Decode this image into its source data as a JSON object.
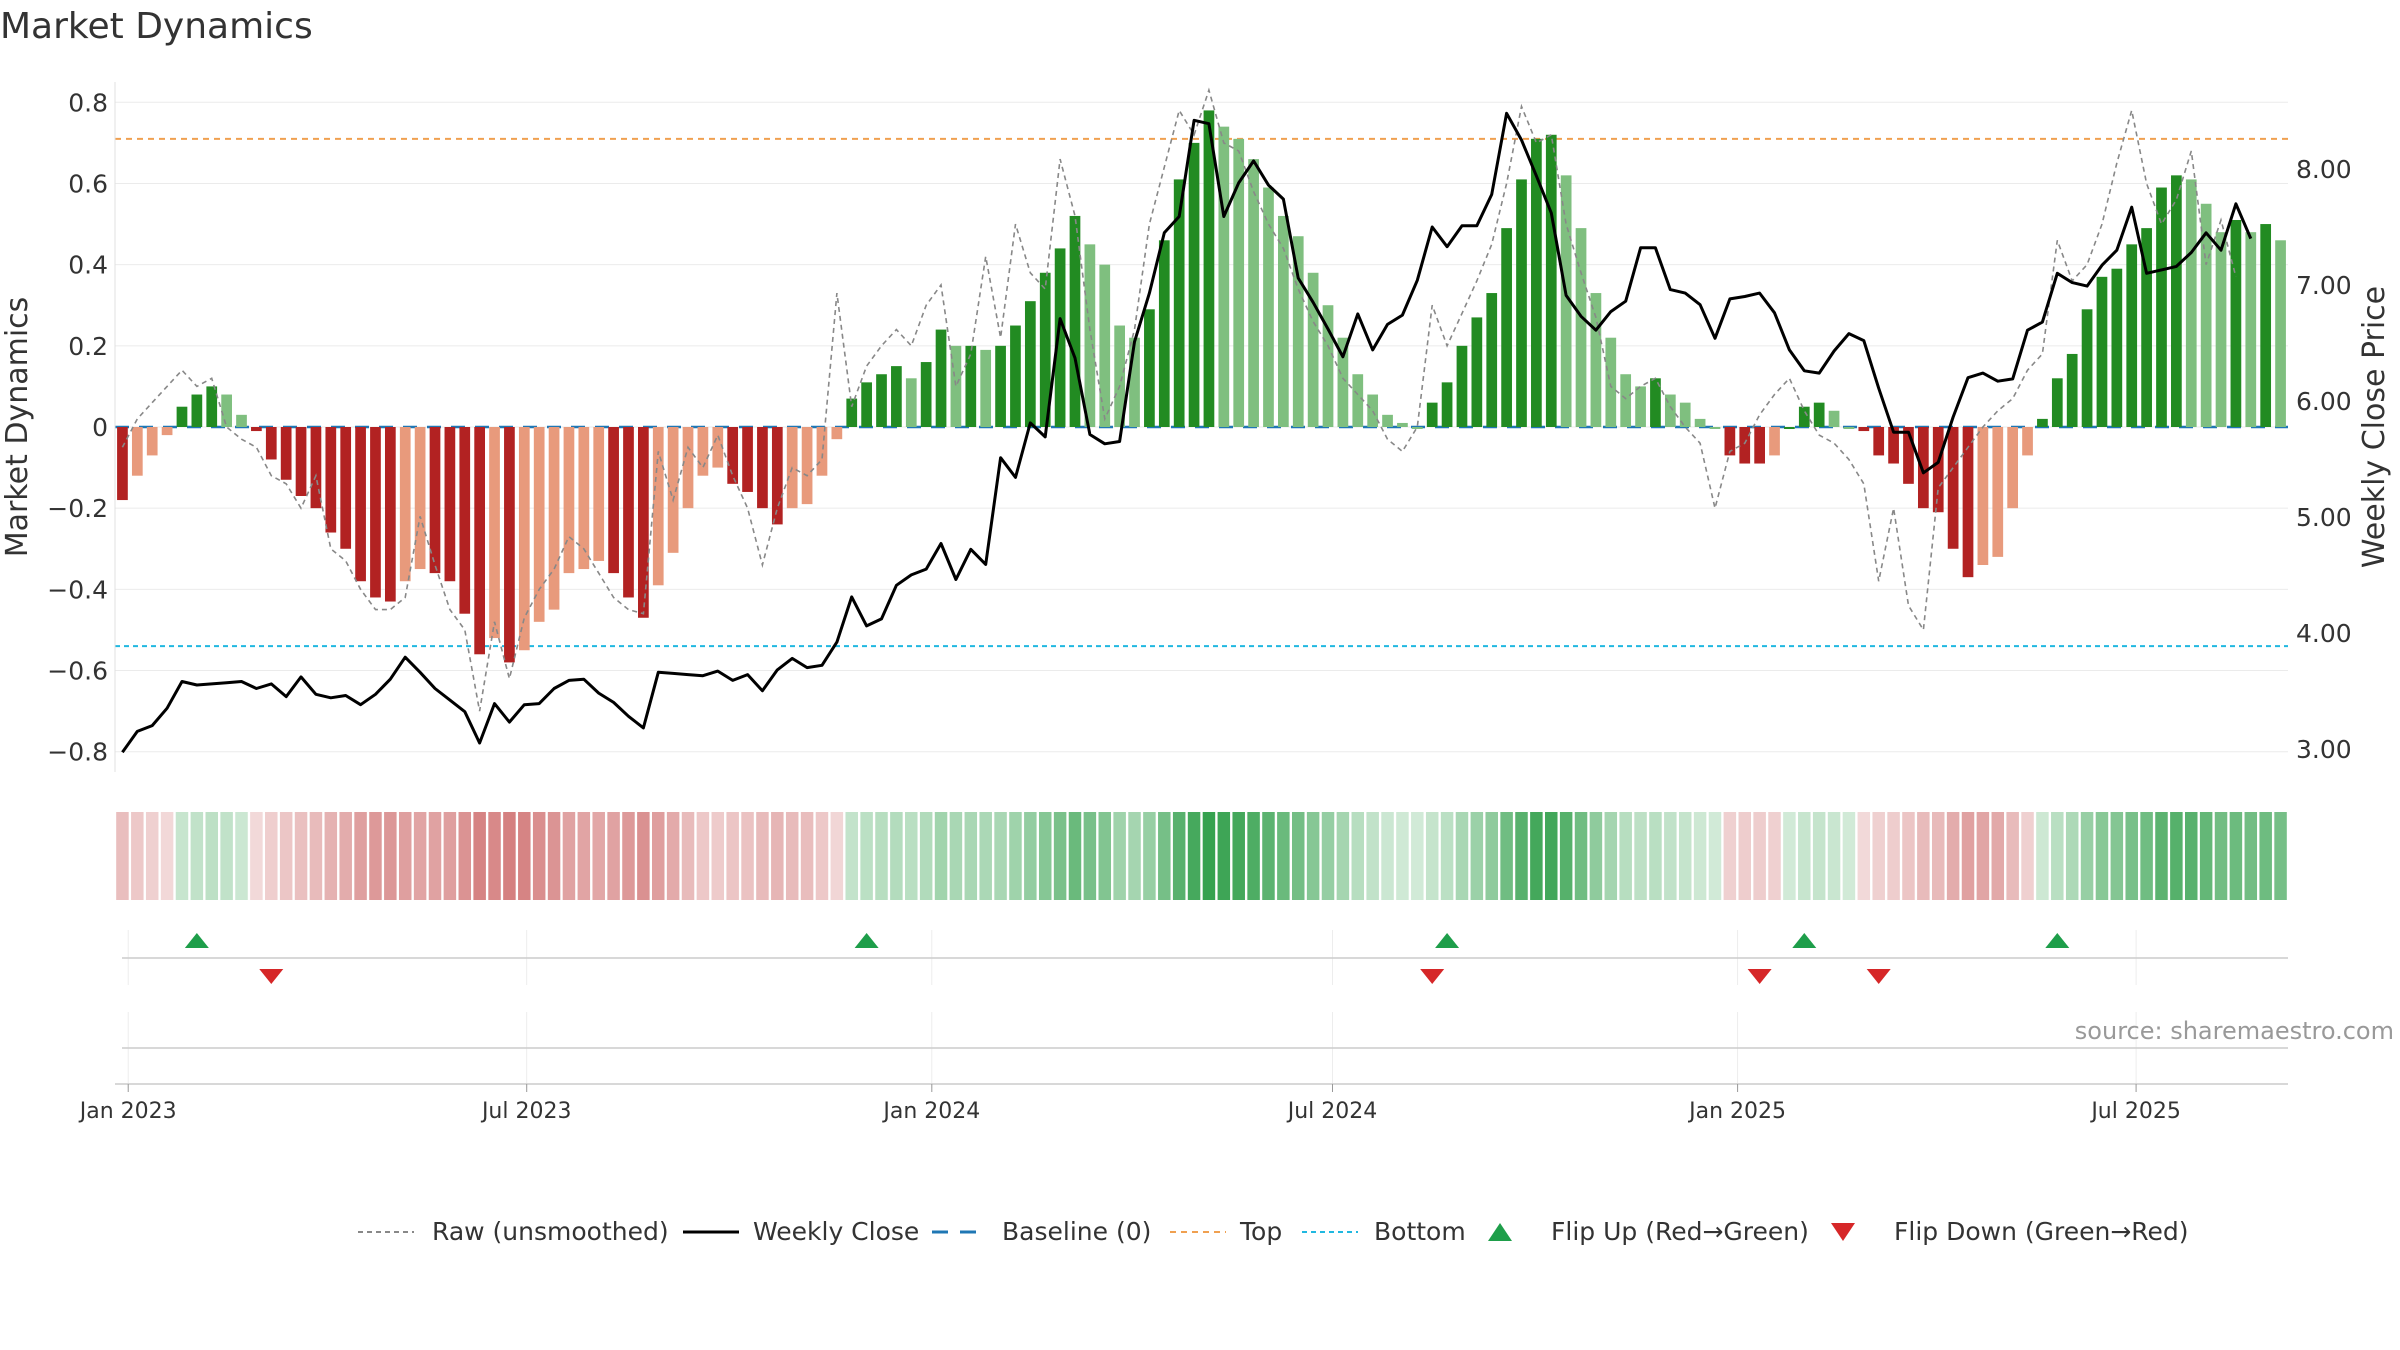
{
  "title": "Market Dynamics",
  "source": "source: sharemaestro.com",
  "colors": {
    "strong_green": "#228B22",
    "light_green": "#7fbf7f",
    "strong_red": "#b22222",
    "light_red": "#e89a7c",
    "close": "#000000",
    "raw": "#888888",
    "baseline": "#1f77b4",
    "top": "#f0a050",
    "bottom": "#20b8e0",
    "flip_up": "#1e9e4a",
    "flip_down": "#d62728"
  },
  "chart_data": {
    "type": "bar",
    "x_start": "2022-12-26",
    "x_end": "2025-09-08",
    "xticks": [
      {
        "date": "2023-01-01",
        "label": "Jan 2023"
      },
      {
        "date": "2023-07-01",
        "label": "Jul 2023"
      },
      {
        "date": "2024-01-01",
        "label": "Jan 2024"
      },
      {
        "date": "2024-07-01",
        "label": "Jul 2024"
      },
      {
        "date": "2025-01-01",
        "label": "Jan 2025"
      },
      {
        "date": "2025-07-01",
        "label": "Jul 2025"
      }
    ],
    "ylabel_left": "Market Dynamics",
    "ylabel_right": "Weekly Close Price",
    "ylim_left": [
      -0.85,
      0.85
    ],
    "ylim_right": [
      2.8,
      8.75
    ],
    "yticks_left": [
      0.8,
      0.6,
      0.4,
      0.2,
      0,
      -0.2,
      -0.4,
      -0.6,
      -0.8
    ],
    "ytick_labels_left": [
      "0.8",
      "0.6",
      "0.4",
      "0.2",
      "0",
      "−0.2",
      "−0.4",
      "−0.6",
      "−0.8"
    ],
    "yticks_right": [
      8,
      7,
      6,
      5,
      4,
      3
    ],
    "ytick_labels_right": [
      "8.00",
      "7.00",
      "6.00",
      "5.00",
      "4.00",
      "3.00"
    ],
    "top_level": 0.71,
    "bottom_level": -0.54,
    "baseline": 0,
    "grid": true,
    "momentum": [
      -0.18,
      -0.12,
      -0.07,
      -0.02,
      0.05,
      0.08,
      0.1,
      0.08,
      0.03,
      -0.01,
      -0.08,
      -0.13,
      -0.17,
      -0.2,
      -0.26,
      -0.3,
      -0.38,
      -0.42,
      -0.43,
      -0.38,
      -0.35,
      -0.36,
      -0.38,
      -0.46,
      -0.56,
      -0.52,
      -0.58,
      -0.55,
      -0.48,
      -0.45,
      -0.36,
      -0.35,
      -0.33,
      -0.36,
      -0.42,
      -0.47,
      -0.39,
      -0.31,
      -0.2,
      -0.12,
      -0.1,
      -0.14,
      -0.16,
      -0.2,
      -0.24,
      -0.2,
      -0.19,
      -0.12,
      -0.03,
      0.07,
      0.11,
      0.13,
      0.15,
      0.12,
      0.16,
      0.24,
      0.2,
      0.2,
      0.19,
      0.2,
      0.25,
      0.31,
      0.38,
      0.44,
      0.52,
      0.45,
      0.4,
      0.25,
      0.22,
      0.29,
      0.46,
      0.61,
      0.7,
      0.78,
      0.74,
      0.71,
      0.66,
      0.59,
      0.52,
      0.47,
      0.38,
      0.3,
      0.22,
      0.13,
      0.08,
      0.03,
      0.01,
      0.0,
      0.06,
      0.11,
      0.2,
      0.27,
      0.33,
      0.49,
      0.61,
      0.71,
      0.72,
      0.62,
      0.49,
      0.33,
      0.22,
      0.13,
      0.1,
      0.12,
      0.08,
      0.06,
      0.02,
      0.0,
      -0.07,
      -0.09,
      -0.09,
      -0.07,
      0.0,
      0.05,
      0.06,
      0.04,
      0.0,
      -0.01,
      -0.07,
      -0.09,
      -0.14,
      -0.2,
      -0.21,
      -0.3,
      -0.37,
      -0.34,
      -0.32,
      -0.2,
      -0.07,
      0.02,
      0.12,
      0.18,
      0.29,
      0.37,
      0.39,
      0.45,
      0.49,
      0.59,
      0.62,
      0.61,
      0.55,
      0.48,
      0.51,
      0.48,
      0.5,
      0.46
    ],
    "raw": [
      -0.05,
      0.02,
      0.06,
      0.1,
      0.14,
      0.1,
      0.12,
      0.0,
      -0.03,
      -0.05,
      -0.12,
      -0.14,
      -0.2,
      -0.12,
      -0.3,
      -0.33,
      -0.4,
      -0.45,
      -0.45,
      -0.42,
      -0.22,
      -0.34,
      -0.45,
      -0.5,
      -0.7,
      -0.48,
      -0.62,
      -0.47,
      -0.4,
      -0.35,
      -0.27,
      -0.3,
      -0.36,
      -0.42,
      -0.45,
      -0.46,
      -0.06,
      -0.18,
      -0.05,
      -0.1,
      -0.02,
      -0.12,
      -0.2,
      -0.34,
      -0.2,
      -0.1,
      -0.12,
      -0.08,
      0.33,
      0.05,
      0.15,
      0.2,
      0.24,
      0.2,
      0.3,
      0.35,
      0.1,
      0.18,
      0.42,
      0.22,
      0.5,
      0.38,
      0.34,
      0.66,
      0.52,
      0.24,
      0.02,
      0.1,
      0.24,
      0.5,
      0.64,
      0.78,
      0.72,
      0.83,
      0.7,
      0.68,
      0.58,
      0.5,
      0.44,
      0.34,
      0.26,
      0.2,
      0.12,
      0.08,
      0.04,
      -0.03,
      -0.06,
      0.0,
      0.3,
      0.2,
      0.28,
      0.36,
      0.45,
      0.6,
      0.79,
      0.7,
      0.72,
      0.5,
      0.38,
      0.27,
      0.1,
      0.07,
      0.1,
      0.12,
      0.05,
      0.0,
      -0.04,
      -0.2,
      -0.06,
      -0.04,
      0.03,
      0.08,
      0.12,
      0.04,
      -0.02,
      -0.04,
      -0.08,
      -0.14,
      -0.38,
      -0.2,
      -0.44,
      -0.5,
      -0.15,
      -0.1,
      -0.05,
      0.0,
      0.04,
      0.07,
      0.14,
      0.18,
      0.46,
      0.36,
      0.4,
      0.5,
      0.65,
      0.78,
      0.6,
      0.5,
      0.56,
      0.68,
      0.4,
      0.51,
      0.37
    ],
    "close": [
      2.97,
      3.15,
      3.2,
      3.35,
      3.58,
      3.55,
      3.56,
      3.57,
      3.58,
      3.52,
      3.56,
      3.45,
      3.62,
      3.47,
      3.44,
      3.46,
      3.38,
      3.47,
      3.6,
      3.79,
      3.66,
      3.52,
      3.42,
      3.32,
      3.05,
      3.39,
      3.23,
      3.38,
      3.39,
      3.52,
      3.59,
      3.6,
      3.48,
      3.4,
      3.28,
      3.18,
      3.66,
      3.65,
      3.64,
      3.63,
      3.67,
      3.59,
      3.64,
      3.5,
      3.68,
      3.78,
      3.7,
      3.72,
      3.92,
      4.31,
      4.06,
      4.12,
      4.41,
      4.5,
      4.55,
      4.77,
      4.46,
      4.72,
      4.59,
      5.51,
      5.34,
      5.81,
      5.69,
      6.71,
      6.37,
      5.71,
      5.63,
      5.65,
      6.51,
      6.93,
      7.45,
      7.59,
      8.42,
      8.39,
      7.59,
      7.88,
      8.07,
      7.86,
      7.74,
      7.06,
      6.85,
      6.62,
      6.38,
      6.75,
      6.44,
      6.66,
      6.74,
      7.04,
      7.5,
      7.33,
      7.51,
      7.51,
      7.78,
      8.48,
      8.25,
      7.94,
      7.62,
      6.91,
      6.73,
      6.61,
      6.77,
      6.86,
      7.32,
      7.32,
      6.96,
      6.93,
      6.83,
      6.54,
      6.88,
      6.9,
      6.93,
      6.76,
      6.44,
      6.26,
      6.24,
      6.43,
      6.58,
      6.52,
      6.11,
      5.73,
      5.73,
      5.38,
      5.47,
      5.86,
      6.2,
      6.24,
      6.17,
      6.19,
      6.61,
      6.68,
      7.1,
      7.02,
      6.99,
      7.17,
      7.3,
      7.67,
      7.1,
      7.13,
      7.16,
      7.28,
      7.45,
      7.3,
      7.7,
      7.4
    ],
    "flip_up": [
      "2023-01-30",
      "2023-12-11",
      "2024-09-09",
      "2025-02-24",
      "2025-06-23"
    ],
    "flip_down": [
      "2023-03-06",
      "2024-09-02",
      "2025-02-03",
      "2025-03-31"
    ],
    "legend": {
      "position": "bottom-center",
      "entries": [
        "Raw (unsmoothed)",
        "Weekly Close",
        "Baseline (0)",
        "Top",
        "Bottom",
        "Flip Up (Red→Green)",
        "Flip Down (Green→Red)"
      ]
    }
  }
}
